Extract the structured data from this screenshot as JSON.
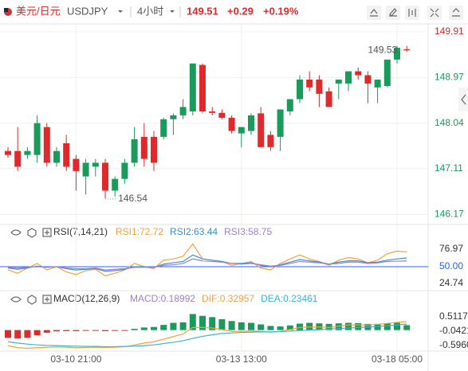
{
  "header": {
    "pair": "美元/日元",
    "symbol": "USDJPY",
    "interval": "4小时",
    "price": "149.51",
    "change": "+0.29",
    "change_pct": "+0.19%"
  },
  "chart_data": [
    {
      "type": "candlestick",
      "categories": [
        null,
        null,
        null,
        null,
        null,
        null,
        null,
        "03-10 21:00",
        null,
        null,
        null,
        null,
        null,
        null,
        null,
        null,
        null,
        null,
        null,
        null,
        null,
        null,
        null,
        null,
        "03-13 13:00",
        null,
        null,
        null,
        null,
        null,
        null,
        null,
        null,
        null,
        null,
        null,
        null,
        null,
        null,
        null,
        "03-18 05:00",
        null
      ],
      "open": [
        147.47,
        147.47,
        147.39,
        147.39,
        147.96,
        147.23,
        147.63,
        147.31,
        146.95,
        147.15,
        147.23,
        146.66,
        146.9,
        147.23,
        147.76,
        147.76,
        147.76,
        148.12,
        148.2,
        148.28,
        149.23,
        148.28,
        148.25,
        148.15,
        147.83,
        147.88,
        148.24,
        147.8,
        147.76,
        148.28,
        148.53,
        148.93,
        148.93,
        148.69,
        148.85,
        148.85,
        149.1,
        149.02,
        148.77,
        148.8,
        149.34,
        149.55
      ],
      "high": [
        147.55,
        147.96,
        147.55,
        148.2,
        148.04,
        147.55,
        147.8,
        147.39,
        147.31,
        147.31,
        147.31,
        146.95,
        147.31,
        147.96,
        148.04,
        147.88,
        148.15,
        148.24,
        148.53,
        149.26,
        149.26,
        148.37,
        148.32,
        148.2,
        147.96,
        148.24,
        148.37,
        147.88,
        148.32,
        148.53,
        149.02,
        149.1,
        149.02,
        148.77,
        148.93,
        149.1,
        149.18,
        149.1,
        148.93,
        149.34,
        149.62,
        149.62
      ],
      "low": [
        147.33,
        147.06,
        147.31,
        147.23,
        147.15,
        147.15,
        147.06,
        146.66,
        146.58,
        146.95,
        146.5,
        146.54,
        146.8,
        147.15,
        147.15,
        147.06,
        147.71,
        147.8,
        148.12,
        148.2,
        148.24,
        148.2,
        148.12,
        147.83,
        147.55,
        147.8,
        147.55,
        147.47,
        147.47,
        148.2,
        148.45,
        148.69,
        148.37,
        148.37,
        148.53,
        148.69,
        148.93,
        148.45,
        148.45,
        148.77,
        149.26,
        149.5
      ],
      "close": [
        147.39,
        147.15,
        147.47,
        148.04,
        147.23,
        147.47,
        147.15,
        147.06,
        147.23,
        147.23,
        146.66,
        146.9,
        147.23,
        147.71,
        147.31,
        147.23,
        148.12,
        148.2,
        148.37,
        149.26,
        148.28,
        148.25,
        148.15,
        147.88,
        147.96,
        148.2,
        147.55,
        147.55,
        148.32,
        148.53,
        148.93,
        148.77,
        148.64,
        148.37,
        148.93,
        149.1,
        149.02,
        148.85,
        148.93,
        149.34,
        149.58,
        149.53
      ],
      "up_color": "#1a9a5b",
      "down_color": "#e0292b",
      "ylim": [
        146.0,
        150.07
      ],
      "yticks": [
        149.91,
        148.97,
        148.04,
        147.11,
        146.17
      ],
      "high_label": 149.53,
      "low_label": 146.54,
      "grid": true
    },
    {
      "type": "line",
      "title": "RSI(7,14,21)",
      "series": [
        {
          "name": "RSI1:72.72",
          "color": "#f5a142",
          "values": [
            45,
            40,
            48,
            55,
            45,
            50,
            42,
            38,
            44,
            46,
            36,
            40,
            45,
            55,
            50,
            47,
            60,
            62,
            66,
            85,
            62,
            60,
            58,
            52,
            55,
            58,
            48,
            45,
            55,
            62,
            68,
            62,
            58,
            52,
            60,
            64,
            62,
            56,
            60,
            70,
            74,
            72.72
          ]
        },
        {
          "name": "RSI2:63.44",
          "color": "#3a8fd9",
          "values": [
            48,
            46,
            48,
            51,
            49,
            50,
            47,
            45,
            46,
            47,
            43,
            44,
            46,
            50,
            50,
            49,
            54,
            56,
            58,
            68,
            62,
            60,
            58,
            55,
            55,
            56,
            52,
            50,
            53,
            57,
            61,
            59,
            57,
            54,
            57,
            59,
            59,
            56,
            57,
            60,
            62,
            63.44
          ]
        },
        {
          "name": "RSI3:58.75",
          "color": "#9b7fd4",
          "values": [
            49,
            48,
            49,
            50,
            49,
            50,
            48,
            47,
            47,
            48,
            45,
            46,
            47,
            49,
            49,
            49,
            52,
            53,
            55,
            62,
            59,
            58,
            57,
            55,
            54,
            55,
            53,
            51,
            52,
            55,
            58,
            57,
            56,
            54,
            55,
            57,
            57,
            55,
            56,
            58,
            58.5,
            58.75
          ]
        }
      ],
      "ylim": [
        17,
        105
      ],
      "yticks": [
        76.97,
        {
          "value": 50,
          "label": "50.00"
        },
        24.74
      ]
    },
    {
      "type": "macd",
      "title": "MACD(12,26,9)",
      "series": [
        {
          "name": "MACD:0.18992",
          "color": "#9b7fd4",
          "up_color": "#1a9a5b",
          "down_color": "#e0292b",
          "values": [
            -0.3,
            -0.32,
            -0.3,
            -0.2,
            -0.1,
            -0.05,
            -0.04,
            -0.04,
            -0.03,
            -0.03,
            -0.04,
            -0.03,
            -0.02,
            0.05,
            0.1,
            0.12,
            0.2,
            0.28,
            0.3,
            0.62,
            0.55,
            0.5,
            0.42,
            0.35,
            0.3,
            0.28,
            0.22,
            0.16,
            0.14,
            0.18,
            0.25,
            0.28,
            0.26,
            0.24,
            0.26,
            0.28,
            0.27,
            0.24,
            0.24,
            0.26,
            0.28,
            0.18992
          ]
        },
        {
          "name": "DIF:0.32957",
          "color": "#f5a142",
          "values": [
            -0.6,
            -0.68,
            -0.7,
            -0.68,
            -0.66,
            -0.65,
            -0.66,
            -0.68,
            -0.67,
            -0.66,
            -0.67,
            -0.66,
            -0.64,
            -0.58,
            -0.5,
            -0.45,
            -0.35,
            -0.25,
            -0.15,
            0.1,
            0.1,
            0.08,
            0.02,
            -0.05,
            -0.05,
            -0.03,
            -0.05,
            -0.08,
            -0.05,
            0.02,
            0.1,
            0.12,
            0.12,
            0.1,
            0.15,
            0.2,
            0.2,
            0.2,
            0.22,
            0.26,
            0.3,
            0.32957
          ]
        },
        {
          "name": "DEA:0.23461",
          "color": "#3ab3d9",
          "values": [
            -0.45,
            -0.5,
            -0.54,
            -0.57,
            -0.59,
            -0.6,
            -0.61,
            -0.62,
            -0.63,
            -0.63,
            -0.64,
            -0.64,
            -0.63,
            -0.62,
            -0.6,
            -0.57,
            -0.52,
            -0.47,
            -0.41,
            -0.32,
            -0.24,
            -0.18,
            -0.13,
            -0.11,
            -0.09,
            -0.08,
            -0.07,
            -0.07,
            -0.06,
            -0.04,
            -0.02,
            0.0,
            0.02,
            0.04,
            0.06,
            0.08,
            0.1,
            0.12,
            0.14,
            0.17,
            0.2,
            0.23461
          ]
        }
      ],
      "ylim": [
        -0.78,
        1.31
      ],
      "yticks": [
        0.51178,
        -0.04213,
        -0.59603
      ]
    }
  ]
}
